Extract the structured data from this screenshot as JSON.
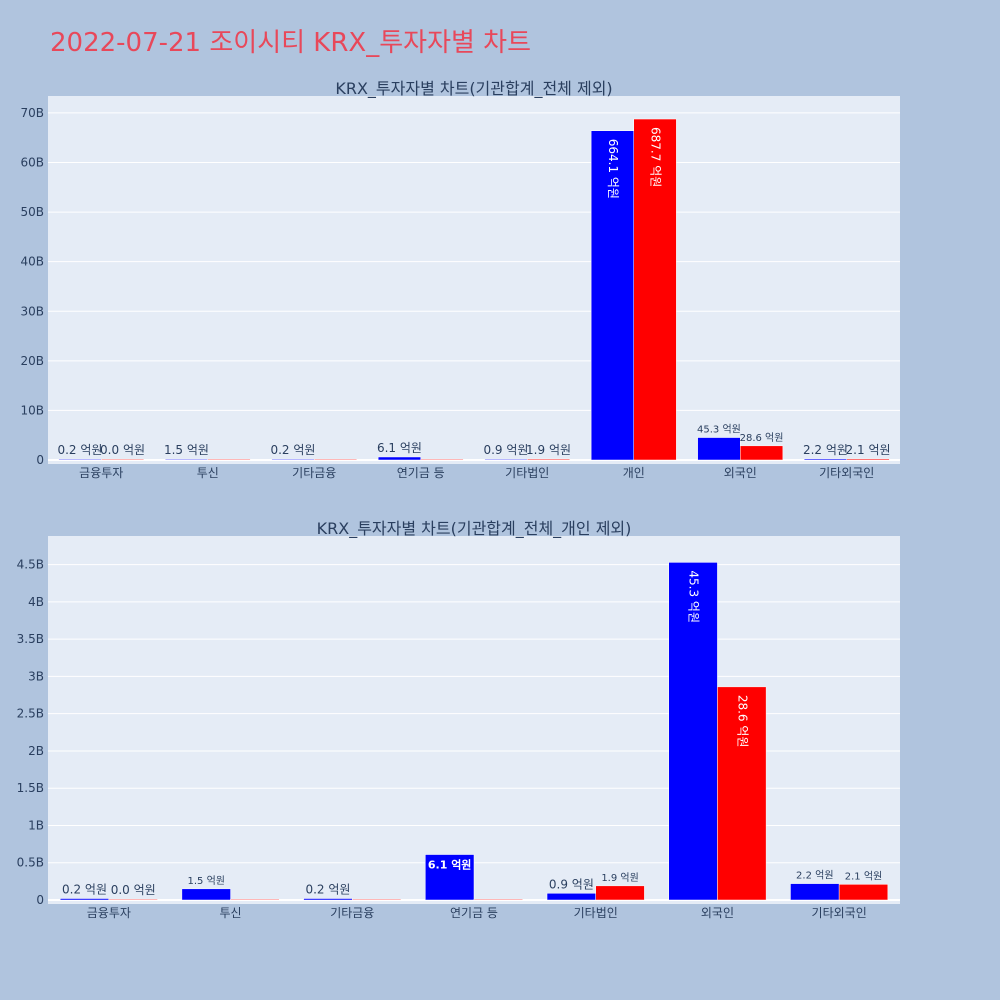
{
  "page": {
    "title": "2022-07-21 조이시티 KRX_투자자별 차트"
  },
  "colors": {
    "buy": "#0000ff",
    "sell": "#ff0000",
    "plot_bg": "#e5ecf6",
    "text": "#2a3f5f"
  },
  "chart_data": [
    {
      "type": "bar",
      "title": "KRX_투자자별 차트(기관합계_전체 제외)",
      "categories": [
        "금융투자",
        "투신",
        "기타금융",
        "연기금 등",
        "기타법인",
        "개인",
        "외국인",
        "기타외국인"
      ],
      "series": [
        {
          "values": [
            0.02,
            0.15,
            0.02,
            0.61,
            0.09,
            66.41,
            4.53,
            0.22
          ],
          "labels": [
            "0.2 억원",
            "1.5 억원",
            "0.2 억원",
            "6.1 억원",
            "0.9 억원",
            "664.1 억원",
            "45.3 억원",
            "2.2 억원"
          ]
        },
        {
          "values": [
            0.0,
            0.0,
            0.0,
            0.0,
            0.19,
            68.77,
            2.86,
            0.21
          ],
          "labels": [
            "0.0 억원",
            "",
            "",
            "",
            "1.9 억원",
            "687.7 억원",
            "28.6 억원",
            "2.1 억원"
          ]
        }
      ],
      "yticks": [
        "0",
        "10B",
        "20B",
        "30B",
        "40B",
        "50B",
        "60B",
        "70B"
      ],
      "ylim": [
        0,
        71.5
      ]
    },
    {
      "type": "bar",
      "title": "KRX_투자자별 차트(기관합계_전체_개인 제외)",
      "categories": [
        "금융투자",
        "투신",
        "기타금융",
        "연기금 등",
        "기타법인",
        "외국인",
        "기타외국인"
      ],
      "series": [
        {
          "values": [
            0.02,
            0.15,
            0.02,
            0.61,
            0.09,
            4.53,
            0.22
          ],
          "labels": [
            "0.2 억원",
            "1.5 억원",
            "0.2 억원",
            "6.1 억원",
            "0.9 억원",
            "45.3 억원",
            "2.2 억원"
          ]
        },
        {
          "values": [
            0.0,
            0.0,
            0.0,
            0.0,
            0.19,
            2.86,
            0.21
          ],
          "labels": [
            "0.0 억원",
            "",
            "",
            "",
            "1.9 억원",
            "28.6 억원",
            "2.1 억원"
          ]
        }
      ],
      "yticks": [
        "0",
        "0.5B",
        "1B",
        "1.5B",
        "2B",
        "2.5B",
        "3B",
        "3.5B",
        "4B",
        "4.5B"
      ],
      "ylim": [
        0,
        4.77
      ]
    }
  ]
}
